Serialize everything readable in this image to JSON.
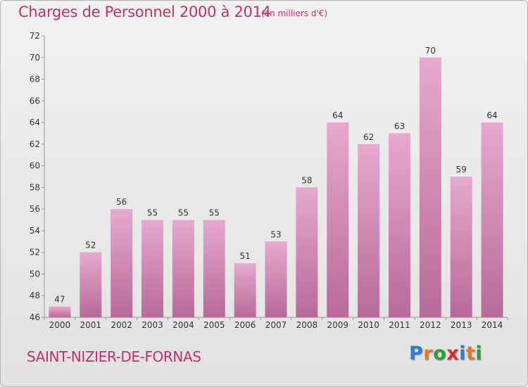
{
  "header": {
    "title": "Charges de Personnel 2000 à 2014",
    "subtitle": "(en milliers d'€)"
  },
  "footer": {
    "town": "SAINT-NIZIER-DE-FORNAS",
    "logo": {
      "text": "Proxiti",
      "letters": [
        {
          "ch": "P",
          "color": "#2f7fd0"
        },
        {
          "ch": "r",
          "color": "#e8791e"
        },
        {
          "ch": "o",
          "color": "#2aa037"
        },
        {
          "ch": "x",
          "color": "#d8302a"
        },
        {
          "ch": "i",
          "color": "#2f7fd0"
        },
        {
          "ch": "t",
          "color": "#e8791e"
        },
        {
          "ch": "i",
          "color": "#2aa037"
        }
      ]
    }
  },
  "chart_data": {
    "type": "bar",
    "title": "Charges de Personnel 2000 à 2014",
    "subtitle": "(en milliers d'€)",
    "categories": [
      "2000",
      "2001",
      "2002",
      "2003",
      "2004",
      "2005",
      "2006",
      "2007",
      "2008",
      "2009",
      "2010",
      "2011",
      "2012",
      "2013",
      "2014"
    ],
    "values": [
      47,
      52,
      56,
      55,
      55,
      55,
      51,
      53,
      58,
      64,
      62,
      63,
      70,
      59,
      64
    ],
    "ylim": [
      46,
      72
    ],
    "yticks": [
      46,
      48,
      50,
      52,
      54,
      56,
      58,
      60,
      62,
      64,
      66,
      68,
      70,
      72
    ],
    "grid": false,
    "legend": "none",
    "colors": {
      "bar_light": "#e6a9cf",
      "bar_dark": "#b86a98",
      "text_accent": "#c0306e"
    }
  }
}
